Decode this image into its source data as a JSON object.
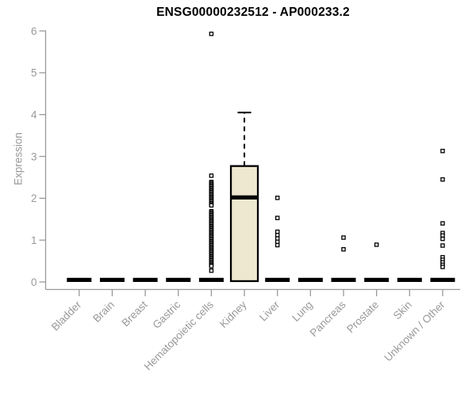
{
  "chart_data": {
    "type": "boxplot",
    "title": "ENSG00000232512 - AP000233.2",
    "ylabel": "Expression",
    "xlabel": "",
    "ylim": [
      0,
      6
    ],
    "yticks": [
      0,
      1,
      2,
      3,
      4,
      5,
      6
    ],
    "grid": false,
    "legend": false,
    "categories": [
      "Bladder",
      "Brain",
      "Breast",
      "Gastric",
      "Hematopoietic cells",
      "Kidney",
      "Liver",
      "Lung",
      "Pancreas",
      "Prostate",
      "Skin",
      "Unknown / Other"
    ],
    "series": [
      {
        "category": "Bladder",
        "box": {
          "type": "flat",
          "median": 0
        },
        "points": []
      },
      {
        "category": "Brain",
        "box": {
          "type": "flat",
          "median": 0
        },
        "points": []
      },
      {
        "category": "Breast",
        "box": {
          "type": "flat",
          "median": 0
        },
        "points": []
      },
      {
        "category": "Gastric",
        "box": {
          "type": "flat",
          "median": 0
        },
        "points": []
      },
      {
        "category": "Hematopoietic cells",
        "box": {
          "type": "flat",
          "median": 0
        },
        "points": [
          5.93,
          2.54,
          2.39,
          2.36,
          2.33,
          2.3,
          2.27,
          2.24,
          2.21,
          2.18,
          2.15,
          2.12,
          2.09,
          2.06,
          2.03,
          2.0,
          1.97,
          1.94,
          1.91,
          1.88,
          1.85,
          1.83,
          1.69,
          1.66,
          1.63,
          1.6,
          1.57,
          1.54,
          1.51,
          1.48,
          1.45,
          1.42,
          1.39,
          1.36,
          1.33,
          1.3,
          1.27,
          1.24,
          1.21,
          1.18,
          1.15,
          1.12,
          1.09,
          1.06,
          1.03,
          1.0,
          0.97,
          0.94,
          0.91,
          0.88,
          0.85,
          0.82,
          0.79,
          0.76,
          0.73,
          0.7,
          0.67,
          0.64,
          0.61,
          0.58,
          0.55,
          0.52,
          0.49,
          0.46,
          0.43,
          0.4,
          0.38,
          0.27
        ]
      },
      {
        "category": "Kidney",
        "box": {
          "type": "box",
          "q1": 0.02,
          "median": 2.02,
          "q3": 2.77,
          "whisker_high": 4.05
        },
        "points": []
      },
      {
        "category": "Liver",
        "box": {
          "type": "flat",
          "median": 0
        },
        "points": [
          2.01,
          1.53,
          1.2,
          1.12,
          1.04,
          0.96,
          0.88
        ]
      },
      {
        "category": "Lung",
        "box": {
          "type": "flat",
          "median": 0
        },
        "points": []
      },
      {
        "category": "Pancreas",
        "box": {
          "type": "flat",
          "median": 0
        },
        "points": [
          1.06,
          0.78
        ]
      },
      {
        "category": "Prostate",
        "box": {
          "type": "flat",
          "median": 0
        },
        "points": [
          0.89
        ]
      },
      {
        "category": "Skin",
        "box": {
          "type": "flat",
          "median": 0
        },
        "points": []
      },
      {
        "category": "Unknown / Other",
        "box": {
          "type": "flat",
          "median": 0
        },
        "points": [
          3.13,
          2.45,
          1.4,
          1.17,
          1.11,
          1.03,
          0.87,
          0.59,
          0.53,
          0.47,
          0.41,
          0.36
        ]
      }
    ],
    "colors": {
      "box_fill": "#EDE8CF",
      "box_stroke": "#000000",
      "flat_bar": "#000000",
      "axis": "#999999",
      "tick_label": "#999999",
      "title": "#000000",
      "point_stroke": "#000000",
      "point_fill": "#FFFFFF",
      "background": "#FFFFFF"
    }
  }
}
